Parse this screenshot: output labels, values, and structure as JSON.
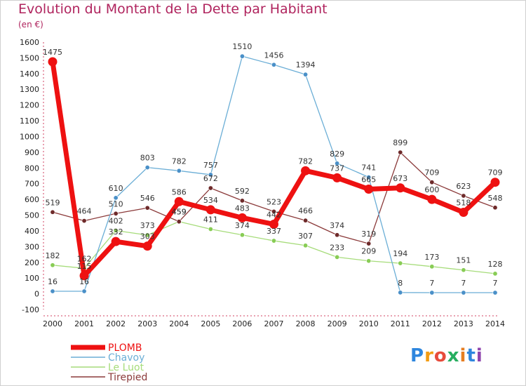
{
  "title": "Evolution du Montant de la Dette par Habitant",
  "subtitle": "(en €)",
  "logo": "Proxiti",
  "chart_data": {
    "type": "line",
    "title": "Evolution du Montant de la Dette par Habitant",
    "subtitle": "(en €)",
    "x": [
      2000,
      2001,
      2002,
      2003,
      2004,
      2005,
      2006,
      2007,
      2008,
      2009,
      2010,
      2011,
      2012,
      2013,
      2014
    ],
    "ylim": [
      -100,
      1600
    ],
    "yticks": [
      -100,
      0,
      100,
      200,
      300,
      400,
      500,
      600,
      700,
      800,
      900,
      1000,
      1100,
      1200,
      1300,
      1400,
      1500,
      1600
    ],
    "grid": false,
    "legend_position": "bottom-left",
    "series": [
      {
        "name": "Chavoy",
        "color": "#6baed6",
        "dot": "#4a90c8",
        "values": [
          16,
          16,
          610,
          803,
          782,
          757,
          1510,
          1456,
          1394,
          829,
          741,
          8,
          7,
          7,
          7
        ]
      },
      {
        "name": "Le Luot",
        "color": "#a6dc7a",
        "dot": "#88cc55",
        "values": [
          182,
          162,
          402,
          373,
          459,
          411,
          374,
          337,
          307,
          233,
          209,
          194,
          173,
          151,
          128
        ]
      },
      {
        "name": "Tirepied",
        "color": "#8b3a3a",
        "dot": "#6e2a2a",
        "values": [
          519,
          464,
          510,
          546,
          459,
          672,
          592,
          523,
          466,
          374,
          319,
          899,
          709,
          623,
          548
        ]
      },
      {
        "name": "PLOMB",
        "color": "#ee1111",
        "dot": "#ee1111",
        "values": [
          1475,
          115,
          332,
          303,
          586,
          534,
          483,
          442,
          782,
          737,
          665,
          673,
          600,
          518,
          709
        ]
      }
    ],
    "legend": [
      "PLOMB",
      "Chavoy",
      "Le Luot",
      "Tirepied"
    ]
  }
}
